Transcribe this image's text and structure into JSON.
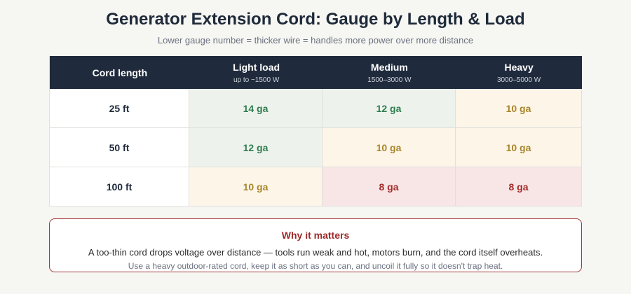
{
  "header": {
    "title": "Generator Extension Cord: Gauge by Length & Load",
    "subtitle": "Lower gauge number = thicker wire = handles more power over more distance"
  },
  "table": {
    "columns": [
      {
        "label": "Cord length"
      },
      {
        "label": "Light load",
        "sub": "up to ~1500 W"
      },
      {
        "label": "Medium",
        "sub": "1500–3000 W"
      },
      {
        "label": "Heavy",
        "sub": "3000–5000 W"
      }
    ],
    "rows": [
      [
        "25 ft",
        "14 ga",
        "12 ga",
        "10 ga"
      ],
      [
        "50 ft",
        "12 ga",
        "10 ga",
        "10 ga"
      ],
      [
        "100 ft",
        "10 ga",
        "8 ga",
        "8 ga"
      ]
    ]
  },
  "note": {
    "title": "Why it matters",
    "text": "A too-thin cord drops voltage over distance — tools run weak and hot, motors burn, and the cord itself overheats.",
    "subtext": "Use a heavy outdoor-rated cord, keep it as short as you can, and uncoil it fully so it doesn't trap heat."
  }
}
